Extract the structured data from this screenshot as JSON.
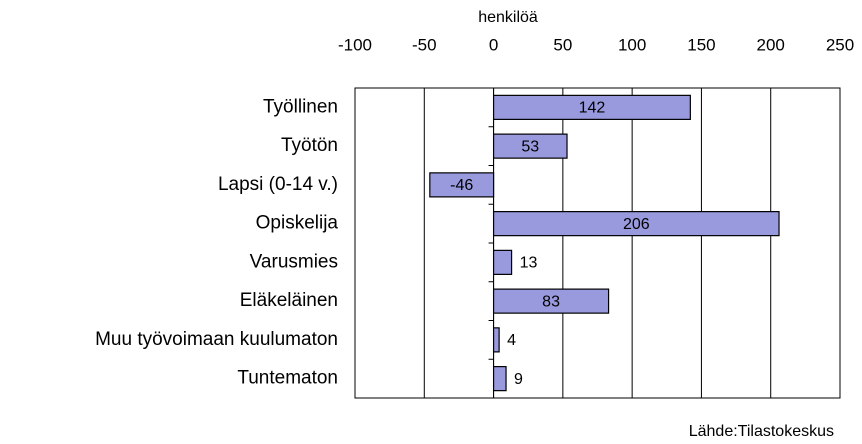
{
  "chart_data": {
    "type": "bar",
    "orientation": "horizontal",
    "x_label": "henkilöä",
    "categories": [
      "Työllinen",
      "Työtön",
      "Lapsi  (0-14 v.)",
      "Opiskelija",
      "Varusmies",
      "Eläkeläinen",
      "Muu työvoimaan kuulumaton",
      "Tuntematon"
    ],
    "values": [
      142,
      53,
      -46,
      206,
      13,
      83,
      4,
      9
    ],
    "color": "#9999dd",
    "xlim": [
      -100,
      250
    ],
    "xticks": [
      -100,
      -50,
      0,
      50,
      100,
      150,
      200,
      250
    ],
    "grid": true,
    "source": "Lähde:Tilastokeskus"
  }
}
